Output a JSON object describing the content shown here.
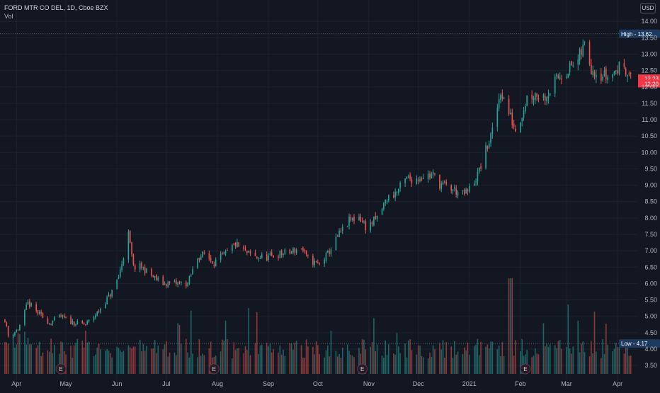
{
  "header": {
    "symbol_line": "FORD MTR CO DEL, 1D, Cboe BZX",
    "volume_label": "Vol",
    "currency": "USD"
  },
  "colors": {
    "background": "#131722",
    "up": "#26a69a",
    "down": "#ef5350",
    "grid": "#1e222d",
    "high_badge": "#2962ff",
    "price_badge": "#f23645"
  },
  "chart_data": {
    "type": "candlestick",
    "title": "FORD MTR CO DEL, 1D, Cboe BZX",
    "y_axis": {
      "ticks": [
        "3.50",
        "4.00",
        "4.50",
        "5.00",
        "5.50",
        "6.00",
        "6.50",
        "7.00",
        "7.50",
        "8.00",
        "8.50",
        "9.00",
        "9.50",
        "10.00",
        "10.50",
        "11.00",
        "11.50",
        "12.00",
        "12.50",
        "13.00",
        "13.50",
        "14.00"
      ],
      "range": [
        3.2,
        14.35
      ],
      "position": "right"
    },
    "x_axis": {
      "ticks": [
        {
          "label": "Apr",
          "date": "2020-04-01"
        },
        {
          "label": "May",
          "date": "2020-05-01"
        },
        {
          "label": "Jun",
          "date": "2020-06-01"
        },
        {
          "label": "Jul",
          "date": "2020-07-01"
        },
        {
          "label": "Aug",
          "date": "2020-08-01"
        },
        {
          "label": "Sep",
          "date": "2020-09-01"
        },
        {
          "label": "Oct",
          "date": "2020-10-01"
        },
        {
          "label": "Nov",
          "date": "2020-11-01"
        },
        {
          "label": "Dec",
          "date": "2020-12-01"
        },
        {
          "label": "2021",
          "date": "2021-01-01"
        },
        {
          "label": "Feb",
          "date": "2021-02-01"
        },
        {
          "label": "Mar",
          "date": "2021-03-01"
        },
        {
          "label": "Apr",
          "date": "2021-04-01"
        }
      ]
    },
    "price_path": [
      [
        "2020-03-25",
        4.9
      ],
      [
        "2020-03-27",
        4.4
      ],
      [
        "2020-04-02",
        4.6
      ],
      [
        "2020-04-08",
        5.4
      ],
      [
        "2020-04-14",
        5.1
      ],
      [
        "2020-04-21",
        4.8
      ],
      [
        "2020-04-28",
        5.0
      ],
      [
        "2020-05-01",
        4.9
      ],
      [
        "2020-05-06",
        4.8
      ],
      [
        "2020-05-13",
        4.75
      ],
      [
        "2020-05-20",
        5.1
      ],
      [
        "2020-05-27",
        5.6
      ],
      [
        "2020-05-29",
        5.75
      ],
      [
        "2020-06-02",
        6.2
      ],
      [
        "2020-06-08",
        7.5
      ],
      [
        "2020-06-11",
        6.5
      ],
      [
        "2020-06-16",
        6.5
      ],
      [
        "2020-06-23",
        6.2
      ],
      [
        "2020-06-29",
        6.0
      ],
      [
        "2020-07-02",
        6.0
      ],
      [
        "2020-07-09",
        6.0
      ],
      [
        "2020-07-14",
        6.0
      ],
      [
        "2020-07-20",
        6.8
      ],
      [
        "2020-07-24",
        6.9
      ],
      [
        "2020-07-30",
        6.65
      ],
      [
        "2020-08-06",
        6.9
      ],
      [
        "2020-08-12",
        7.2
      ],
      [
        "2020-08-18",
        6.95
      ],
      [
        "2020-08-24",
        6.8
      ],
      [
        "2020-09-01",
        6.8
      ],
      [
        "2020-09-08",
        6.9
      ],
      [
        "2020-09-14",
        6.95
      ],
      [
        "2020-09-21",
        7.1
      ],
      [
        "2020-09-24",
        6.8
      ],
      [
        "2020-09-30",
        6.6
      ],
      [
        "2020-10-02",
        6.6
      ],
      [
        "2020-10-07",
        6.9
      ],
      [
        "2020-10-14",
        7.5
      ],
      [
        "2020-10-20",
        7.9
      ],
      [
        "2020-10-26",
        8.05
      ],
      [
        "2020-10-30",
        7.75
      ],
      [
        "2020-11-02",
        7.8
      ],
      [
        "2020-11-06",
        8.0
      ],
      [
        "2020-11-12",
        8.6
      ],
      [
        "2020-11-18",
        8.8
      ],
      [
        "2020-11-24",
        9.2
      ],
      [
        "2020-11-30",
        9.2
      ],
      [
        "2020-12-04",
        9.3
      ],
      [
        "2020-12-10",
        9.3
      ],
      [
        "2020-12-14",
        9.05
      ],
      [
        "2020-12-18",
        8.95
      ],
      [
        "2020-12-23",
        8.85
      ],
      [
        "2020-12-28",
        8.7
      ],
      [
        "2020-12-31",
        8.8
      ],
      [
        "2021-01-06",
        9.3
      ],
      [
        "2021-01-12",
        10.2
      ],
      [
        "2021-01-15",
        10.6
      ],
      [
        "2021-01-20",
        11.9
      ],
      [
        "2021-01-25",
        11.2
      ],
      [
        "2021-01-29",
        10.7
      ],
      [
        "2021-02-02",
        11.2
      ],
      [
        "2021-02-05",
        11.7
      ],
      [
        "2021-02-10",
        11.8
      ],
      [
        "2021-02-15",
        11.7
      ],
      [
        "2021-02-19",
        11.9
      ],
      [
        "2021-02-24",
        12.3
      ],
      [
        "2021-03-01",
        12.5
      ],
      [
        "2021-03-08",
        12.8
      ],
      [
        "2021-03-12",
        13.3
      ],
      [
        "2021-03-16",
        12.6
      ],
      [
        "2021-03-22",
        12.4
      ],
      [
        "2021-03-26",
        12.3
      ],
      [
        "2021-03-31",
        12.5
      ],
      [
        "2021-04-05",
        12.7
      ],
      [
        "2021-04-09",
        12.25
      ]
    ],
    "markers": {
      "high": {
        "label": "High",
        "value": "13.62"
      },
      "low": {
        "label": "Low",
        "value": "4.17"
      },
      "last_price": {
        "value": "12.23"
      },
      "second_price": {
        "value": "12.20"
      }
    },
    "earnings_marker_label": "E",
    "earnings_dates": [
      "2020-04-28",
      "2020-07-30",
      "2020-10-28",
      "2021-02-04"
    ],
    "volume_spike_date": "2021-01-26",
    "grid": true,
    "legend": "none"
  }
}
